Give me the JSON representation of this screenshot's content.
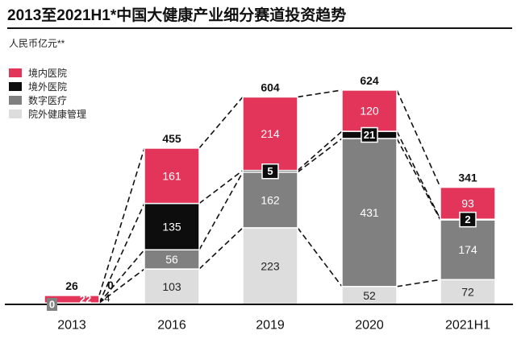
{
  "header": {
    "title": "2013至2021H1*中国大健康产业细分赛道投资趋势",
    "unit": "人民币亿元**"
  },
  "chart_data": {
    "type": "bar",
    "stacked": true,
    "title": "2013至2021H1*中国大健康产业细分赛道投资趋势",
    "ylabel": "人民币亿元**",
    "categories": [
      "2013",
      "2016",
      "2019",
      "2020",
      "2021H1"
    ],
    "series": [
      {
        "name": "院外健康管理",
        "color": "#dddddd",
        "text_color": "#222222",
        "values": [
          4,
          103,
          223,
          52,
          72
        ]
      },
      {
        "name": "数字医疗",
        "color": "#808080",
        "text_color": "#ffffff",
        "values": [
          0,
          56,
          162,
          431,
          174
        ]
      },
      {
        "name": "境外医院",
        "color": "#0d0d0d",
        "text_color": "#ffffff",
        "values": [
          0,
          135,
          5,
          21,
          2
        ]
      },
      {
        "name": "境内医院",
        "color": "#e3345a",
        "text_color": "#ffffff",
        "values": [
          22,
          161,
          214,
          120,
          93
        ]
      }
    ],
    "totals": [
      "26",
      "455",
      "604",
      "624",
      "341"
    ],
    "ylim": [
      0,
      680
    ],
    "legend_position": "top-left",
    "grid": false
  }
}
